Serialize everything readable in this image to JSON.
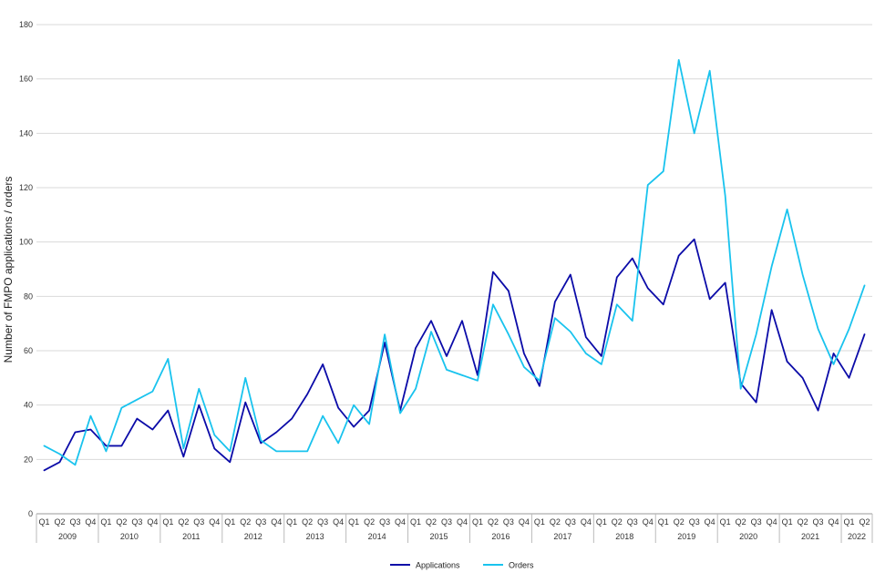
{
  "chart_data": {
    "type": "line",
    "title": "",
    "xlabel": "",
    "ylabel": "Number of FMPO applications / orders",
    "ylim": [
      0,
      180
    ],
    "yticks": [
      0,
      20,
      40,
      60,
      80,
      100,
      120,
      140,
      160,
      180
    ],
    "grid": true,
    "legend_position": "bottom",
    "quarters": [
      "Q1",
      "Q2",
      "Q3",
      "Q4",
      "Q1",
      "Q2",
      "Q3",
      "Q4",
      "Q1",
      "Q2",
      "Q3",
      "Q4",
      "Q1",
      "Q2",
      "Q3",
      "Q4",
      "Q1",
      "Q2",
      "Q3",
      "Q4",
      "Q1",
      "Q2",
      "Q3",
      "Q4",
      "Q1",
      "Q2",
      "Q3",
      "Q4",
      "Q1",
      "Q2",
      "Q3",
      "Q4",
      "Q1",
      "Q2",
      "Q3",
      "Q4",
      "Q1",
      "Q2",
      "Q3",
      "Q4",
      "Q1",
      "Q2",
      "Q3",
      "Q4",
      "Q1",
      "Q2",
      "Q3",
      "Q4",
      "Q1",
      "Q2",
      "Q3",
      "Q4",
      "Q1",
      "Q2"
    ],
    "years": [
      {
        "label": "2009",
        "count": 4
      },
      {
        "label": "2010",
        "count": 4
      },
      {
        "label": "2011",
        "count": 4
      },
      {
        "label": "2012",
        "count": 4
      },
      {
        "label": "2013",
        "count": 4
      },
      {
        "label": "2014",
        "count": 4
      },
      {
        "label": "2015",
        "count": 4
      },
      {
        "label": "2016",
        "count": 4
      },
      {
        "label": "2017",
        "count": 4
      },
      {
        "label": "2018",
        "count": 4
      },
      {
        "label": "2019",
        "count": 4
      },
      {
        "label": "2020",
        "count": 4
      },
      {
        "label": "2021",
        "count": 4
      },
      {
        "label": "2022",
        "count": 2
      }
    ],
    "series": [
      {
        "name": "Applications",
        "color": "#0b0ba8",
        "values": [
          16,
          19,
          30,
          31,
          25,
          25,
          35,
          31,
          38,
          21,
          40,
          24,
          19,
          41,
          26,
          30,
          35,
          44,
          55,
          39,
          32,
          38,
          63,
          38,
          61,
          71,
          58,
          71,
          51,
          89,
          82,
          59,
          47,
          78,
          88,
          65,
          58,
          87,
          94,
          83,
          77,
          95,
          101,
          79,
          85,
          48,
          41,
          75,
          56,
          50,
          38,
          59,
          50,
          66
        ]
      },
      {
        "name": "Orders",
        "color": "#19c3ee",
        "values": [
          25,
          22,
          18,
          36,
          23,
          39,
          42,
          45,
          57,
          24,
          46,
          29,
          23,
          50,
          27,
          23,
          23,
          23,
          36,
          26,
          40,
          33,
          66,
          37,
          46,
          67,
          53,
          51,
          49,
          77,
          66,
          54,
          49,
          72,
          67,
          59,
          55,
          77,
          71,
          121,
          126,
          167,
          140,
          163,
          117,
          46,
          66,
          91,
          112,
          88,
          68,
          55,
          68,
          84
        ]
      }
    ]
  }
}
